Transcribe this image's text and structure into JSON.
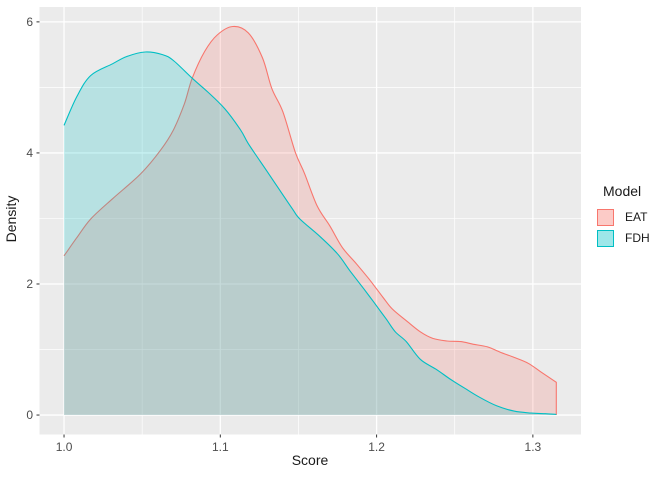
{
  "chart_data": {
    "type": "area",
    "subtype": "kernel-density-overlay",
    "title": "",
    "xlabel": "Score",
    "ylabel": "Density",
    "grid": true,
    "panel_background": "#EBEBEB",
    "gridline_color": "#FFFFFF",
    "tick_label_color": "#4D4D4D",
    "x_axis": {
      "tick_labels": [
        "1.0",
        "1.1",
        "1.2",
        "1.3"
      ],
      "tick_values": [
        1.0,
        1.1,
        1.2,
        1.3
      ],
      "minor_values": [
        1.05,
        1.15,
        1.25
      ],
      "range": [
        0.9843,
        1.3308
      ]
    },
    "y_axis": {
      "tick_labels": [
        "0",
        "2",
        "4",
        "6"
      ],
      "tick_values": [
        0,
        2,
        4,
        6
      ],
      "minor_values": [
        1,
        3,
        5
      ],
      "range": [
        -0.297,
        6.227
      ]
    },
    "legend": {
      "title": "Model",
      "position": "right",
      "entries": [
        {
          "label": "EAT",
          "color": "#F8766D",
          "swatch_fill": "rgba(248,118,109,0.38)"
        },
        {
          "label": "FDH",
          "color": "#00BFC4",
          "swatch_fill": "rgba(0,191,196,0.38)"
        }
      ]
    },
    "series": [
      {
        "name": "EAT",
        "line_color": "#F8766D",
        "fill_color": "rgba(248,118,109,0.22)",
        "close_right_edge": true,
        "points": [
          [
            1.0,
            2.43
          ],
          [
            1.008,
            2.7
          ],
          [
            1.017,
            2.99
          ],
          [
            1.031,
            3.3
          ],
          [
            1.049,
            3.68
          ],
          [
            1.062,
            4.05
          ],
          [
            1.07,
            4.35
          ],
          [
            1.077,
            4.75
          ],
          [
            1.082,
            5.14
          ],
          [
            1.09,
            5.55
          ],
          [
            1.098,
            5.8
          ],
          [
            1.108,
            5.93
          ],
          [
            1.118,
            5.83
          ],
          [
            1.127,
            5.45
          ],
          [
            1.133,
            4.98
          ],
          [
            1.14,
            4.63
          ],
          [
            1.148,
            4.01
          ],
          [
            1.154,
            3.68
          ],
          [
            1.162,
            3.19
          ],
          [
            1.17,
            2.89
          ],
          [
            1.178,
            2.56
          ],
          [
            1.187,
            2.31
          ],
          [
            1.195,
            2.08
          ],
          [
            1.204,
            1.8
          ],
          [
            1.21,
            1.62
          ],
          [
            1.219,
            1.44
          ],
          [
            1.228,
            1.27
          ],
          [
            1.236,
            1.17
          ],
          [
            1.245,
            1.13
          ],
          [
            1.254,
            1.12
          ],
          [
            1.262,
            1.08
          ],
          [
            1.271,
            1.04
          ],
          [
            1.279,
            0.96
          ],
          [
            1.288,
            0.88
          ],
          [
            1.297,
            0.79
          ],
          [
            1.305,
            0.66
          ],
          [
            1.315,
            0.5
          ]
        ]
      },
      {
        "name": "FDH",
        "line_color": "#00BFC4",
        "fill_color": "rgba(0,191,196,0.22)",
        "close_right_edge": false,
        "points": [
          [
            1.0,
            4.42
          ],
          [
            1.008,
            4.85
          ],
          [
            1.017,
            5.18
          ],
          [
            1.031,
            5.36
          ],
          [
            1.04,
            5.47
          ],
          [
            1.052,
            5.54
          ],
          [
            1.063,
            5.5
          ],
          [
            1.07,
            5.41
          ],
          [
            1.082,
            5.14
          ],
          [
            1.092,
            4.93
          ],
          [
            1.103,
            4.67
          ],
          [
            1.113,
            4.35
          ],
          [
            1.118,
            4.14
          ],
          [
            1.131,
            3.68
          ],
          [
            1.146,
            3.15
          ],
          [
            1.151,
            2.99
          ],
          [
            1.164,
            2.72
          ],
          [
            1.175,
            2.46
          ],
          [
            1.183,
            2.2
          ],
          [
            1.192,
            1.92
          ],
          [
            1.198,
            1.73
          ],
          [
            1.206,
            1.47
          ],
          [
            1.212,
            1.27
          ],
          [
            1.219,
            1.12
          ],
          [
            1.228,
            0.85
          ],
          [
            1.238,
            0.7
          ],
          [
            1.247,
            0.55
          ],
          [
            1.257,
            0.4
          ],
          [
            1.266,
            0.27
          ],
          [
            1.277,
            0.14
          ],
          [
            1.288,
            0.06
          ],
          [
            1.299,
            0.03
          ],
          [
            1.308,
            0.02
          ],
          [
            1.315,
            0.01
          ]
        ]
      }
    ]
  }
}
